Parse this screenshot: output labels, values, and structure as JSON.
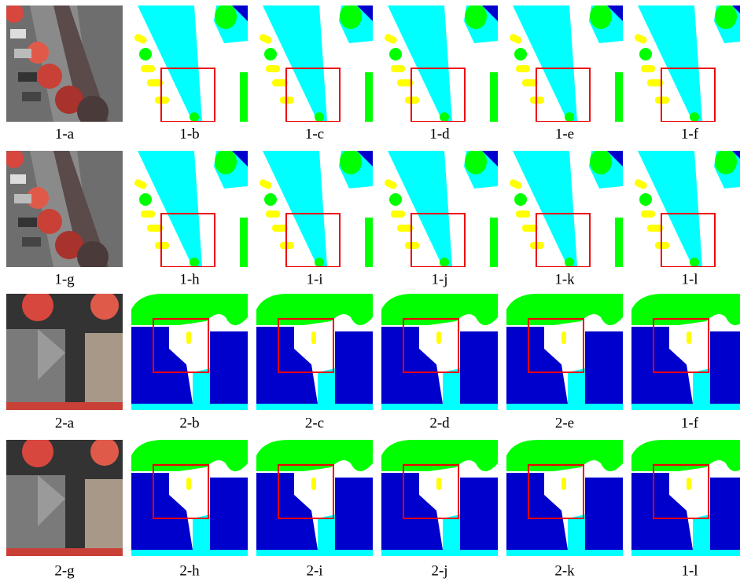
{
  "rows": [
    [
      "1-a",
      "1-b",
      "1-c",
      "1-d",
      "1-e",
      "1-f"
    ],
    [
      "1-g",
      "1-h",
      "1-i",
      "1-j",
      "1-k",
      "1-l"
    ],
    [
      "2-a",
      "2-b",
      "2-c",
      "2-d",
      "2-e",
      "1-f"
    ],
    [
      "2-g",
      "2-h",
      "2-i",
      "2-j",
      "2-k",
      "1-l"
    ]
  ]
}
